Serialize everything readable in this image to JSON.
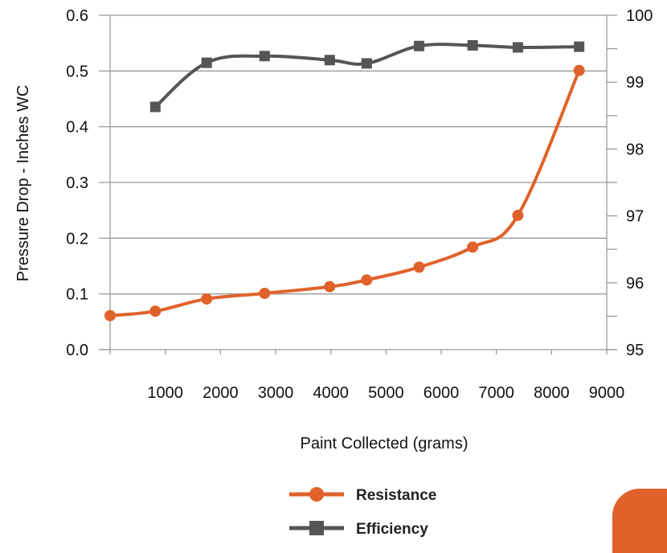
{
  "chart_data": {
    "type": "line",
    "title": "",
    "xlabel": "Paint Collected (grams)",
    "ylabel": "Pressure Drop - Inches WC",
    "y2label": "",
    "xlim": [
      0,
      9000
    ],
    "ylim": [
      0,
      0.6
    ],
    "y2lim": [
      95,
      100
    ],
    "x_ticks": [
      "1000",
      "2000",
      "3000",
      "4000",
      "5000",
      "6000",
      "7000",
      "8000",
      "9000"
    ],
    "y_ticks": [
      "0.0",
      "0.1",
      "0.2",
      "0.3",
      "0.4",
      "0.5",
      "0.6"
    ],
    "y2_ticks": [
      "95",
      "96",
      "97",
      "98",
      "99",
      "100"
    ],
    "grid": true,
    "legend": "bottom-center",
    "series": [
      {
        "name": "Resistance",
        "axis": "left",
        "marker": "circle",
        "color": "#E0622A",
        "x": [
          0,
          820,
          1750,
          2800,
          3980,
          4650,
          5600,
          6570,
          7390,
          8500
        ],
        "y": [
          0.061,
          0.069,
          0.091,
          0.101,
          0.113,
          0.125,
          0.148,
          0.184,
          0.241,
          0.501
        ]
      },
      {
        "name": "Efficiency",
        "axis": "right",
        "marker": "square",
        "color": "#555555",
        "x": [
          820,
          1750,
          2800,
          3980,
          4650,
          5600,
          6570,
          7390,
          8500
        ],
        "y": [
          98.63,
          99.29,
          99.39,
          99.33,
          99.28,
          99.54,
          99.55,
          99.52,
          99.53
        ]
      }
    ]
  },
  "accent_color": "#E0622A"
}
